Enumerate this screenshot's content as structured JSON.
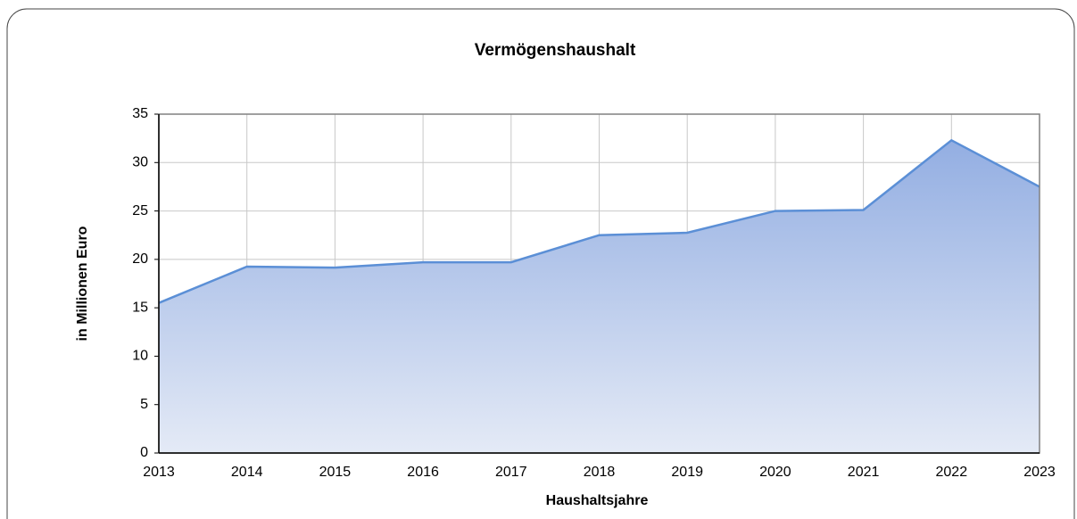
{
  "chart_data": {
    "type": "area",
    "title": "Vermögenshaushalt",
    "x_label": "Haushaltsjahre",
    "y_label": "in Millionen Euro",
    "x": [
      2013,
      2014,
      2015,
      2016,
      2017,
      2018,
      2019,
      2020,
      2021,
      2022,
      2023
    ],
    "series": [
      {
        "name": "Vermögenshaushalt",
        "color": "#5b8fd6",
        "values": [
          15.5,
          19.25,
          19.15,
          19.7,
          19.7,
          22.5,
          22.75,
          25.0,
          25.1,
          32.3,
          27.5
        ]
      }
    ],
    "xlim": [
      2013,
      2023
    ],
    "xticks": [
      2013,
      2014,
      2015,
      2016,
      2017,
      2018,
      2019,
      2020,
      2021,
      2022,
      2023
    ],
    "ylim": [
      0,
      35
    ],
    "yticks": [
      0,
      5,
      10,
      15,
      20,
      25,
      30,
      35
    ],
    "grid": true
  }
}
